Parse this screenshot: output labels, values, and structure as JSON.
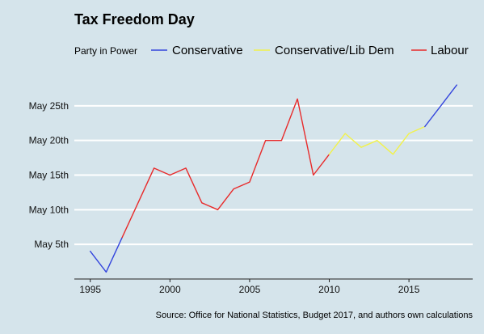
{
  "chart_data": {
    "type": "line",
    "title": "Tax Freedom Day",
    "legend": {
      "title": "Party in Power",
      "placement": "top",
      "entries": [
        {
          "name": "Conservative",
          "color": "#3344dd"
        },
        {
          "name": "Conservative/Lib Dem",
          "color": "#f2f24a"
        },
        {
          "name": "Labour",
          "color": "#e82a2a"
        }
      ]
    },
    "xlabel": "",
    "ylabel": "",
    "x_ticks": [
      1995,
      2000,
      2005,
      2010,
      2015
    ],
    "y_ticks": [
      {
        "value": 5,
        "label": "May 5th"
      },
      {
        "value": 10,
        "label": "May 10th"
      },
      {
        "value": 15,
        "label": "May 15th"
      },
      {
        "value": 20,
        "label": "May 20th"
      },
      {
        "value": 25,
        "label": "May 25th"
      }
    ],
    "xlim": [
      1994,
      2019
    ],
    "ylim": [
      0,
      30
    ],
    "grid": "horizontal",
    "series": [
      {
        "name": "Conservative",
        "color": "#3344dd",
        "x": [
          1995,
          1996,
          1997
        ],
        "y": [
          4,
          1,
          6
        ]
      },
      {
        "name": "Labour",
        "color": "#e82a2a",
        "x": [
          1997,
          1998,
          1999,
          2000,
          2001,
          2002,
          2003,
          2004,
          2005,
          2006,
          2007,
          2008,
          2009,
          2010
        ],
        "y": [
          6,
          11,
          16,
          15,
          16,
          11,
          10,
          13,
          14,
          20,
          20,
          26,
          15,
          18
        ]
      },
      {
        "name": "Conservative/Lib Dem",
        "color": "#f2f24a",
        "x": [
          2010,
          2011,
          2012,
          2013,
          2014,
          2015,
          2016
        ],
        "y": [
          18,
          21,
          19,
          20,
          18,
          21,
          22
        ]
      },
      {
        "name": "Conservative",
        "color": "#3344dd",
        "x": [
          2016,
          2017,
          2018
        ],
        "y": [
          22,
          25,
          28
        ]
      }
    ]
  },
  "caption": "Source: Office for National Statistics, Budget 2017, and authors own calculations"
}
